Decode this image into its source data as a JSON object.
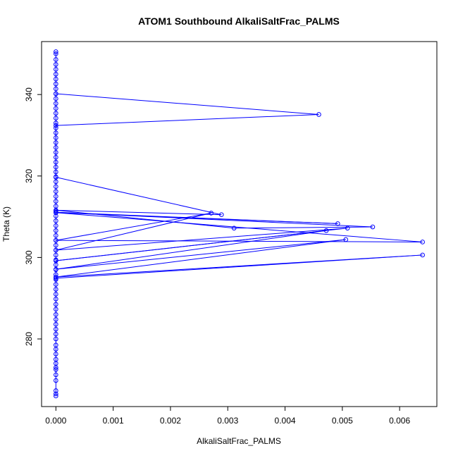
{
  "chart_data": {
    "type": "line",
    "title": "ATOM1 Southbound AlkaliSaltFrac_PALMS",
    "xlabel": "AlkaliSaltFrac_PALMS",
    "ylabel": "Theta (K)",
    "xlim": [
      -0.00025,
      0.00665
    ],
    "ylim": [
      263.4,
      353.0
    ],
    "xticks": [
      0.0,
      0.001,
      0.002,
      0.003,
      0.004,
      0.005,
      0.006
    ],
    "xtick_labels": [
      "0.000",
      "0.001",
      "0.002",
      "0.003",
      "0.004",
      "0.005",
      "0.006"
    ],
    "yticks": [
      280,
      300,
      320,
      340
    ],
    "ytick_labels": [
      "280",
      "300",
      "320",
      "340"
    ],
    "grid": false,
    "legend": "none",
    "series": [
      {
        "color": "#0000ff",
        "marker": "circle-open",
        "line": true,
        "x": [
          0.0,
          0.00459,
          0.0,
          0.0,
          0.00289,
          0.0,
          0.00311,
          0.00553,
          0.0,
          0.00492,
          0.0,
          0.0064,
          0.0,
          0.00271,
          0.0,
          0.00509,
          0.0,
          0.00472,
          0.0,
          0.00506,
          0.0,
          0.0064,
          0.0
        ],
        "y": [
          340.2,
          335.1,
          332.4,
          319.7,
          310.5,
          311.6,
          307.2,
          307.5,
          311.1,
          308.3,
          311.0,
          303.8,
          304.2,
          310.9,
          301.8,
          307.2,
          299.2,
          306.6,
          297.1,
          304.4,
          295.2,
          300.6,
          294.9
        ]
      }
    ],
    "y_axis_cluster": {
      "x": 0.0,
      "y_range": [
        266.0,
        350.5
      ],
      "note_points": [
        266.0,
        266.5,
        267.3,
        269.8,
        271.2,
        272.5,
        273.0,
        274.0,
        275.0,
        276.3,
        277.5,
        278.5,
        280.0,
        281.2,
        282.4,
        283.6,
        284.8,
        286.0,
        287.3,
        288.5,
        289.8,
        291.0,
        292.2,
        293.4,
        294.6,
        295.8,
        297.0,
        298.2,
        299.4,
        300.6,
        301.8,
        303.0,
        304.2,
        305.4,
        306.6,
        307.8,
        309.0,
        310.2,
        311.4,
        312.6,
        313.8,
        315.0,
        316.2,
        317.4,
        318.6,
        319.8,
        321.0,
        322.2,
        323.4,
        324.6,
        325.8,
        327.0,
        328.2,
        329.4,
        330.6,
        331.8,
        333.0,
        334.2,
        335.4,
        336.6,
        337.8,
        339.0,
        340.2,
        341.4,
        342.6,
        343.8,
        345.0,
        346.2,
        347.4,
        348.6,
        350.0,
        350.5
      ]
    }
  }
}
